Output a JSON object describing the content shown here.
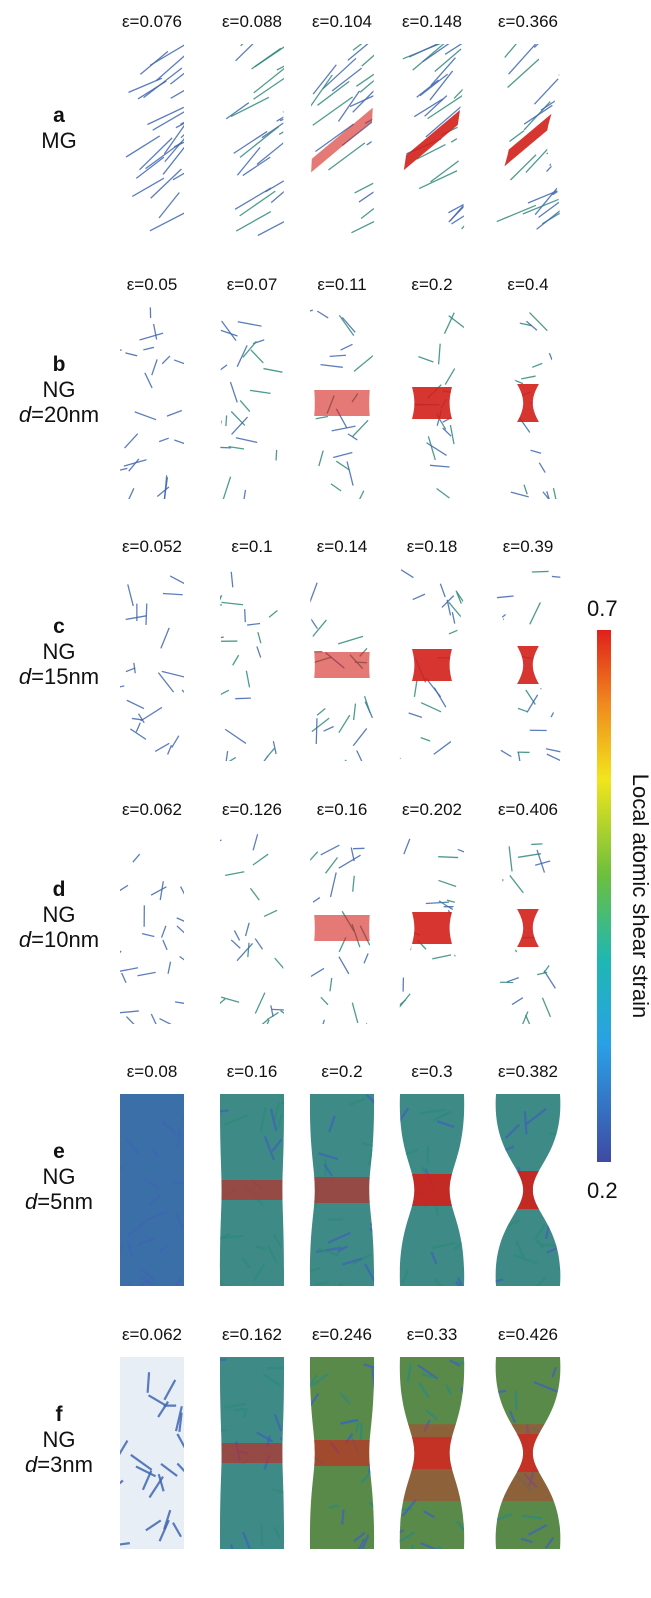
{
  "figure": {
    "rows": [
      {
        "letter": "a",
        "material": "MG",
        "size_prefix": "",
        "size_value": "",
        "strains": [
          "ε=0.076",
          "ε=0.088",
          "ε=0.104",
          "ε=0.148",
          "ε=0.366"
        ]
      },
      {
        "letter": "b",
        "material": "NG",
        "size_prefix": "d",
        "size_value": "=20nm",
        "strains": [
          "ε=0.05",
          "ε=0.07",
          "ε=0.11",
          "ε=0.2",
          "ε=0.4"
        ]
      },
      {
        "letter": "c",
        "material": "NG",
        "size_prefix": "d",
        "size_value": "=15nm",
        "strains": [
          "ε=0.052",
          "ε=0.1",
          "ε=0.14",
          "ε=0.18",
          "ε=0.39"
        ]
      },
      {
        "letter": "d",
        "material": "NG",
        "size_prefix": "d",
        "size_value": "=10nm",
        "strains": [
          "ε=0.062",
          "ε=0.126",
          "ε=0.16",
          "ε=0.202",
          "ε=0.406"
        ]
      },
      {
        "letter": "e",
        "material": "NG",
        "size_prefix": "d",
        "size_value": "=5nm",
        "strains": [
          "ε=0.08",
          "ε=0.16",
          "ε=0.2",
          "ε=0.3",
          "ε=0.382"
        ]
      },
      {
        "letter": "f",
        "material": "NG",
        "size_prefix": "d",
        "size_value": "=3nm",
        "strains": [
          "ε=0.062",
          "ε=0.162",
          "ε=0.246",
          "ε=0.33",
          "ε=0.426"
        ]
      }
    ],
    "colorbar": {
      "max_label": "0.7",
      "min_label": "0.2",
      "title": "Local atomic shear strain",
      "colors": [
        "#3f4aa3",
        "#2aa0e6",
        "#1fb7b3",
        "#6dbf3e",
        "#f2e51c",
        "#f08a1e",
        "#e0201b"
      ]
    }
  }
}
